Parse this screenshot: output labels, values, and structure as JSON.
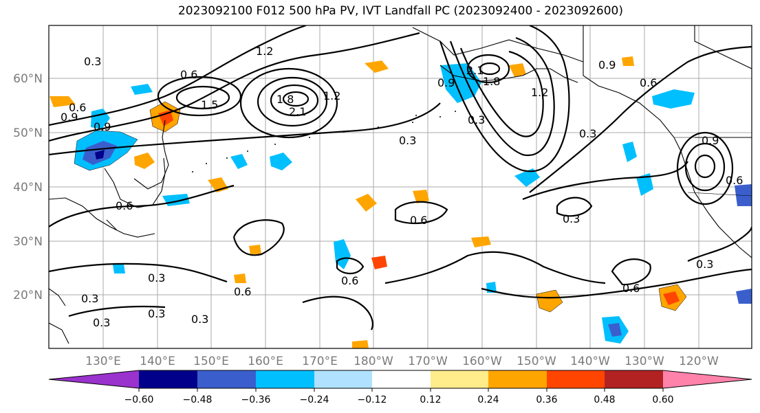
{
  "title": "2023092100 F012 500 hPa PV, IVT Landfall PC (2023092400 - 2023092600)",
  "lat_labels": [
    "60°N",
    "50°N",
    "40°N",
    "30°N",
    "20°N"
  ],
  "lon_labels": [
    "130°E",
    "140°E",
    "150°E",
    "160°E",
    "170°E",
    "180°W",
    "170°W",
    "160°W",
    "150°W",
    "140°W",
    "130°W",
    "120°W"
  ],
  "colorbar": {
    "labels": [
      "−0.60",
      "−0.48",
      "−0.36",
      "−0.24",
      "−0.12",
      "0.12",
      "0.24",
      "0.36",
      "0.48",
      "0.60"
    ],
    "colors": [
      "#9a32cd",
      "#00008b",
      "#3a5fcd",
      "#00bfff",
      "#b0e2ff",
      "#ffffff",
      "#ffec8b",
      "#ffa500",
      "#ff4500",
      "#b22222",
      "#ff82ab"
    ]
  },
  "contour_labels": [
    "0.3",
    "0.6",
    "0.9",
    "1.2",
    "1.5",
    "1.8",
    "2.1",
    "0.3",
    "0.6",
    "0.9",
    "1.2",
    "0.6",
    "0.3",
    "0.3",
    "0.6",
    "0.6",
    "0.6",
    "0.3",
    "0.6",
    "0.3",
    "0.9",
    "0.6",
    "0.9",
    "0.6",
    "0.3",
    "0.3",
    "1.2",
    "1.8",
    "2.1",
    "0.9",
    "0.3",
    "0.3",
    "0.3"
  ]
}
